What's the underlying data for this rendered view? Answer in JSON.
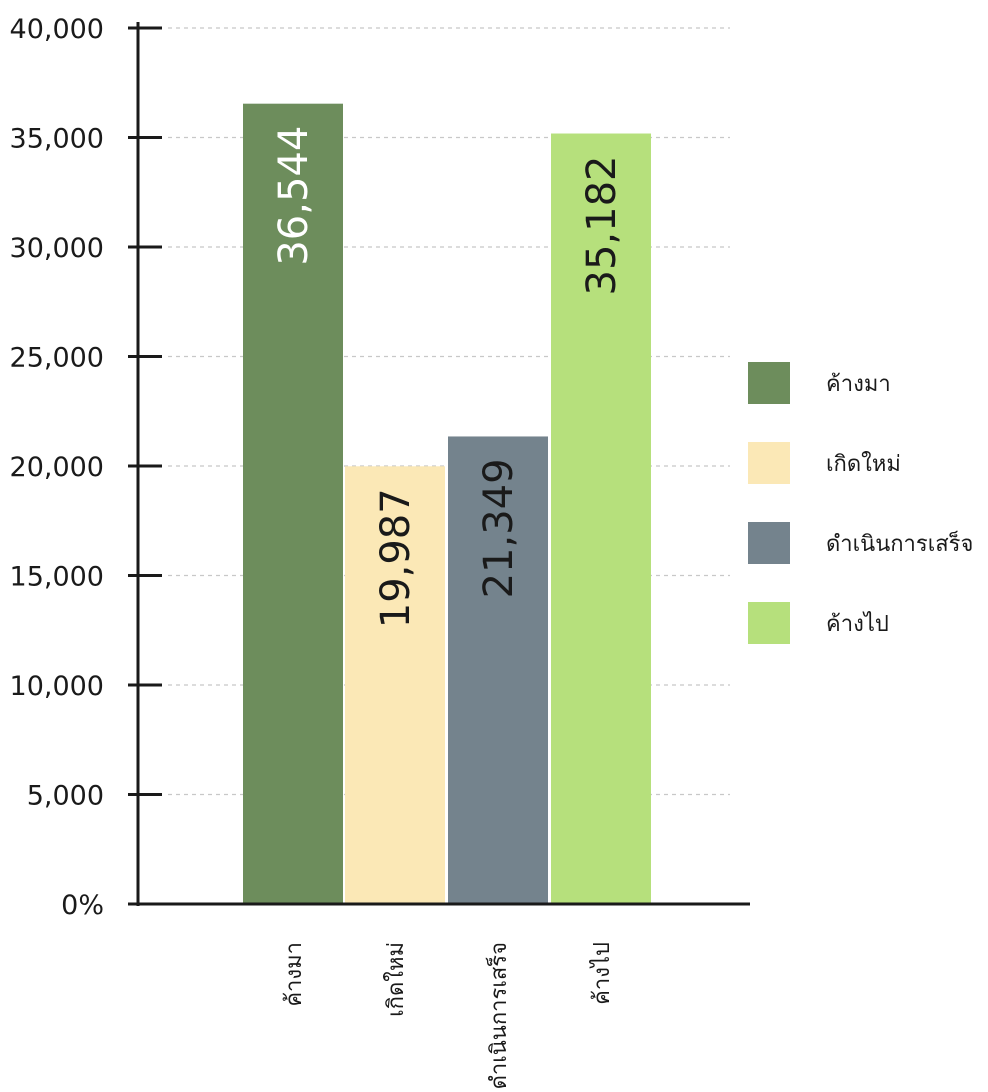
{
  "chart_data": {
    "type": "bar",
    "title": "",
    "xlabel": "",
    "ylabel": "",
    "categories": [
      "ค้างมา",
      "เกิดใหม่",
      "ดำเนินการเสร็จ",
      "ค้างไป"
    ],
    "values": [
      36544,
      19987,
      21349,
      35182
    ],
    "value_labels": [
      "36,544",
      "19,987",
      "21,349",
      "35,182"
    ],
    "bar_colors": [
      "#6d8d5c",
      "#fbe8b6",
      "#74838d",
      "#b6e07c"
    ],
    "label_colors": [
      "#ffffff",
      "#1a1a1a",
      "#1a1a1a",
      "#1a1a1a"
    ],
    "ylim": [
      0,
      40000
    ],
    "yticks": [
      0,
      5000,
      10000,
      15000,
      20000,
      25000,
      30000,
      35000,
      40000
    ],
    "ytick_labels": [
      "0%",
      "5,000",
      "10,000",
      "15,000",
      "20,000",
      "25,000",
      "30,000",
      "35,000",
      "40,000"
    ],
    "grid": true,
    "legend_position": "right",
    "legend": [
      {
        "label": "ค้างมา",
        "color": "#6d8d5c"
      },
      {
        "label": "เกิดใหม่",
        "color": "#fbe8b6"
      },
      {
        "label": "ดำเนินการเสร็จ",
        "color": "#74838d"
      },
      {
        "label": "ค้างไป",
        "color": "#b6e07c"
      }
    ]
  }
}
